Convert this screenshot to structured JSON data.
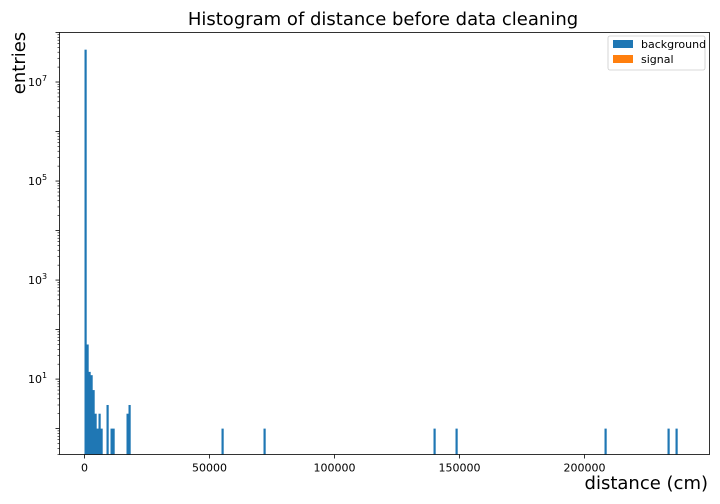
{
  "chart_data": {
    "type": "bar",
    "title": "Histogram of distance before data cleaning",
    "xlabel": "distance (cm)",
    "ylabel": "entries",
    "yscale": "log",
    "xlim": [
      -10000,
      250000
    ],
    "ylim": [
      0.3,
      100000000
    ],
    "grid": false,
    "legend_placement": "top-right",
    "x_ticks": [
      {
        "value": 0,
        "label": "0"
      },
      {
        "value": 50000,
        "label": "50000"
      },
      {
        "value": 100000,
        "label": "100000"
      },
      {
        "value": 150000,
        "label": "150000"
      },
      {
        "value": 200000,
        "label": "200000"
      }
    ],
    "y_ticks": [
      {
        "value": 10,
        "base": "10",
        "exp": "1"
      },
      {
        "value": 1000,
        "base": "10",
        "exp": "3"
      },
      {
        "value": 100000,
        "base": "10",
        "exp": "5"
      },
      {
        "value": 10000000,
        "base": "10",
        "exp": "7"
      }
    ],
    "bin_width": 800,
    "series": [
      {
        "name": "background",
        "color": "#1f77b4",
        "bins": [
          {
            "x": 0,
            "y": 45000000
          },
          {
            "x": 800,
            "y": 50
          },
          {
            "x": 1600,
            "y": 14
          },
          {
            "x": 2400,
            "y": 12
          },
          {
            "x": 3200,
            "y": 6
          },
          {
            "x": 4000,
            "y": 2
          },
          {
            "x": 4800,
            "y": 1
          },
          {
            "x": 5600,
            "y": 2
          },
          {
            "x": 6400,
            "y": 1
          },
          {
            "x": 8800,
            "y": 3
          },
          {
            "x": 10400,
            "y": 1
          },
          {
            "x": 11200,
            "y": 1
          },
          {
            "x": 16800,
            "y": 2
          },
          {
            "x": 17600,
            "y": 3
          },
          {
            "x": 54800,
            "y": 1
          },
          {
            "x": 71600,
            "y": 1
          },
          {
            "x": 139600,
            "y": 1
          },
          {
            "x": 148400,
            "y": 1
          },
          {
            "x": 208000,
            "y": 1
          },
          {
            "x": 233200,
            "y": 1
          },
          {
            "x": 236400,
            "y": 1
          }
        ]
      },
      {
        "name": "signal",
        "color": "#ff7f0e",
        "bins": []
      }
    ]
  }
}
